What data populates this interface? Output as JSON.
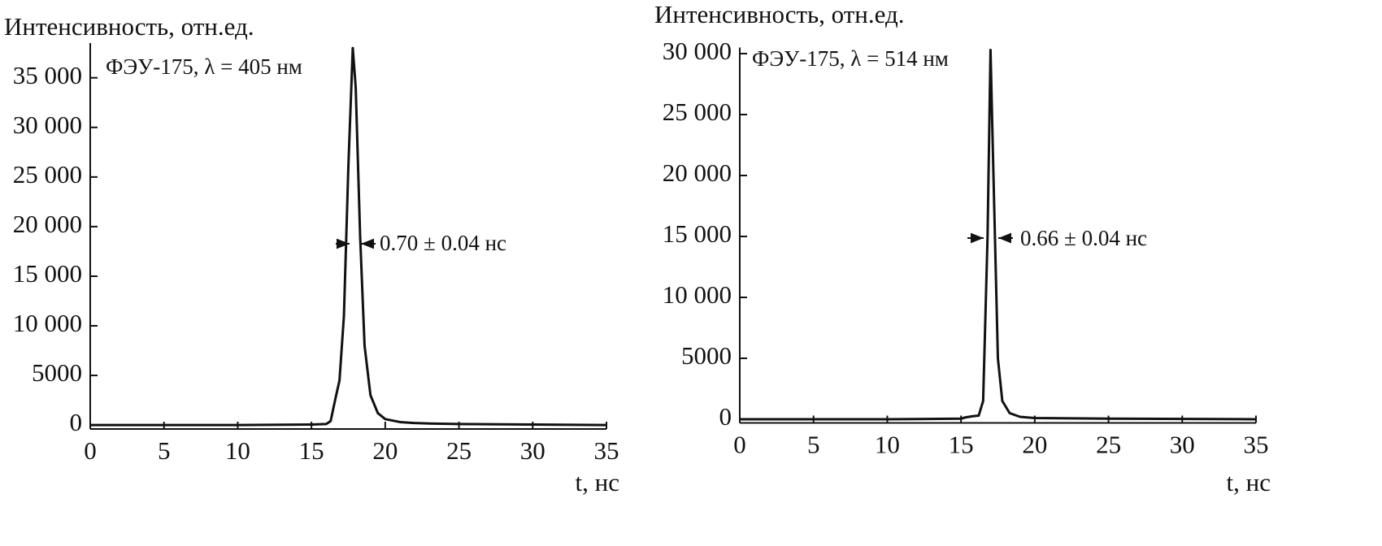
{
  "chart_data": [
    {
      "type": "line",
      "y_label": "Интенсивность, отн.ед.",
      "annotation": "ФЭУ-175,  λ = 405 нм",
      "fwhm_label": "0.70 ± 0.04 нс",
      "x_label": "t, нс",
      "color": "#111111",
      "x": [
        0,
        5,
        10,
        15,
        16,
        16.3,
        16.6,
        16.9,
        17.2,
        17.5,
        17.8,
        18.0,
        18.3,
        18.6,
        19.0,
        19.5,
        20,
        21,
        22,
        23,
        25,
        30,
        35
      ],
      "values": [
        0,
        0,
        0,
        50,
        100,
        400,
        2500,
        4500,
        11000,
        26000,
        38000,
        34000,
        19000,
        8000,
        3000,
        1200,
        600,
        300,
        200,
        150,
        100,
        50,
        0
      ],
      "xlim": [
        0,
        35
      ],
      "ylim": [
        -400,
        38500
      ],
      "xticks": [
        0,
        5,
        10,
        15,
        20,
        25,
        30,
        35
      ],
      "yticks": [
        0,
        5000,
        {
          "value": 10000,
          "label": "10 000"
        },
        {
          "value": 15000,
          "label": "15 000"
        },
        {
          "value": 20000,
          "label": "20 000"
        },
        {
          "value": 25000,
          "label": "25 000"
        },
        {
          "value": 30000,
          "label": "30 000"
        },
        {
          "value": 35000,
          "label": "35 000"
        }
      ]
    },
    {
      "type": "line",
      "y_label": "Интенсивность, отн.ед.",
      "annotation": "ФЭУ-175, λ = 514 нм",
      "fwhm_label": "0.66 ± 0.04 нс",
      "x_label": "t, нс",
      "color": "#111111",
      "x": [
        0,
        5,
        10,
        15,
        15.3,
        15.8,
        16.2,
        16.5,
        16.8,
        17.0,
        17.2,
        17.5,
        17.8,
        18.3,
        19,
        20,
        25,
        35
      ],
      "values": [
        0,
        0,
        0,
        50,
        150,
        250,
        300,
        1500,
        15000,
        30300,
        20000,
        5000,
        1500,
        500,
        200,
        100,
        50,
        0
      ],
      "xlim": [
        0,
        35
      ],
      "ylim": [
        -300,
        30500
      ],
      "xticks": [
        0,
        5,
        10,
        15,
        20,
        25,
        30,
        35
      ],
      "yticks": [
        0,
        5000,
        {
          "value": 10000,
          "label": "10 000"
        },
        {
          "value": 15000,
          "label": "15 000"
        },
        {
          "value": 20000,
          "label": "20 000"
        },
        {
          "value": 25000,
          "label": "25 000"
        },
        {
          "value": 30000,
          "label": "30 000"
        }
      ]
    }
  ]
}
